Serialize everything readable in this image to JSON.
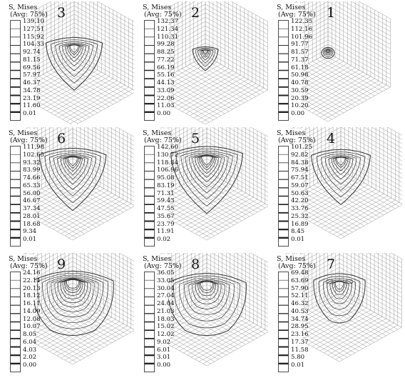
{
  "legend_title_line1": "S, Mises",
  "legend_title_line2": "(Avg: 75%)",
  "colors": {
    "background": "#ffffff",
    "mesh": "#9a9a9a",
    "contour": "#333333",
    "text": "#111111"
  },
  "panels": [
    {
      "number": "3",
      "values": [
        "139.10",
        "127.51",
        "115.92",
        "104.33",
        "92.74",
        "81.15",
        "69.56",
        "57.97",
        "46.37",
        "34.78",
        "23.19",
        "11.60",
        "0.01"
      ]
    },
    {
      "number": "2",
      "values": [
        "132.37",
        "121.34",
        "110.31",
        "99.28",
        "88.25",
        "77.22",
        "66.19",
        "55.16",
        "44.13",
        "33.09",
        "22.06",
        "11.03",
        "0.00"
      ]
    },
    {
      "number": "1",
      "values": [
        "122.35",
        "112.16",
        "101.96",
        "91.77",
        "81.57",
        "71.37",
        "61.18",
        "50.98",
        "40.78",
        "30.59",
        "20.39",
        "10.20",
        "0.00"
      ]
    },
    {
      "number": "6",
      "values": [
        "111.98",
        "102.65",
        "93.32",
        "83.99",
        "74.66",
        "65.33",
        "56.00",
        "46.67",
        "37.34",
        "28.01",
        "18.68",
        "9.34",
        "0.01"
      ]
    },
    {
      "number": "5",
      "values": [
        "142.60",
        "130.72",
        "118.84",
        "106.96",
        "95.08",
        "83.19",
        "71.31",
        "59.43",
        "47.55",
        "35.67",
        "23.79",
        "11.91",
        "0.02"
      ]
    },
    {
      "number": "4",
      "values": [
        "101.25",
        "92.82",
        "84.38",
        "75.94",
        "67.51",
        "59.07",
        "50.63",
        "42.20",
        "33.76",
        "25.32",
        "16.89",
        "8.45",
        "0.01"
      ]
    },
    {
      "number": "9",
      "values": [
        "24.16",
        "22.14",
        "20.13",
        "18.12",
        "16.11",
        "14.09",
        "12.08",
        "10.07",
        "8.05",
        "6.04",
        "4.03",
        "2.02",
        "0.00"
      ]
    },
    {
      "number": "8",
      "values": [
        "36.05",
        "33.05",
        "30.04",
        "27.04",
        "24.04",
        "21.03",
        "18.03",
        "15.02",
        "12.02",
        "9.02",
        "6.01",
        "3.01",
        "0.00"
      ]
    },
    {
      "number": "7",
      "values": [
        "69.48",
        "63.69",
        "57.90",
        "52.11",
        "46.32",
        "40.53",
        "34.74",
        "28.95",
        "23.16",
        "17.37",
        "11.58",
        "5.80",
        "0.01"
      ]
    }
  ]
}
